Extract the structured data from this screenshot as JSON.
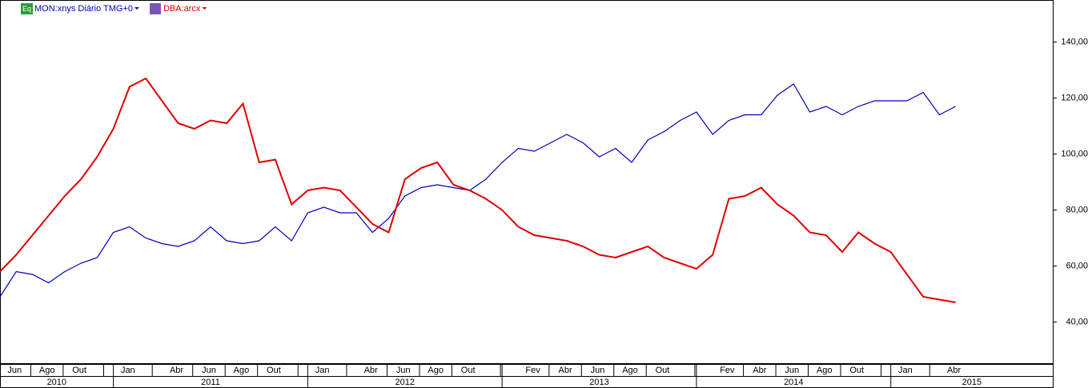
{
  "chart_data": {
    "type": "line",
    "legend": "top-left",
    "x": [
      "2010-06",
      "2010-07",
      "2010-08",
      "2010-09",
      "2010-10",
      "2010-11",
      "2010-12",
      "2011-01",
      "2011-02",
      "2011-03",
      "2011-04",
      "2011-05",
      "2011-06",
      "2011-07",
      "2011-08",
      "2011-09",
      "2011-10",
      "2011-11",
      "2011-12",
      "2012-01",
      "2012-02",
      "2012-03",
      "2012-04",
      "2012-05",
      "2012-06",
      "2012-07",
      "2012-08",
      "2012-09",
      "2012-10",
      "2012-11",
      "2012-12",
      "2013-01",
      "2013-02",
      "2013-03",
      "2013-04",
      "2013-05",
      "2013-06",
      "2013-07",
      "2013-08",
      "2013-09",
      "2013-10",
      "2013-11",
      "2013-12",
      "2014-01",
      "2014-02",
      "2014-03",
      "2014-04",
      "2014-05",
      "2014-06",
      "2014-07",
      "2014-08",
      "2014-09",
      "2014-10",
      "2014-11",
      "2014-12",
      "2015-01",
      "2015-02",
      "2015-03",
      "2015-04",
      "2015-05"
    ],
    "series": [
      {
        "name": "MON:xnys Diário TMG+0",
        "badge": "Eq",
        "color": "#0000c0",
        "values": [
          49,
          58,
          57,
          54,
          58,
          61,
          63,
          72,
          74,
          70,
          68,
          67,
          69,
          74,
          69,
          68,
          69,
          74,
          69,
          79,
          81,
          79,
          79,
          72,
          77,
          85,
          88,
          89,
          88,
          87,
          91,
          97,
          102,
          101,
          104,
          107,
          104,
          99,
          102,
          97,
          105,
          108,
          112,
          115,
          107,
          112,
          114,
          114,
          121,
          125,
          115,
          117,
          114,
          117,
          119,
          119,
          119,
          122,
          114,
          117
        ]
      },
      {
        "name": "DBA:arcx",
        "color": "#e00000",
        "values": [
          58,
          64,
          71,
          78,
          85,
          91,
          99,
          109,
          124,
          127,
          119,
          111,
          109,
          112,
          111,
          118,
          97,
          98,
          82,
          87,
          88,
          87,
          81,
          75,
          72,
          91,
          95,
          97,
          89,
          87,
          84,
          80,
          74,
          71,
          70,
          69,
          67,
          64,
          63,
          65,
          67,
          63,
          61,
          59,
          64,
          84,
          85,
          88,
          82,
          78,
          72,
          71,
          65,
          72,
          68,
          65,
          57,
          49,
          48,
          47
        ]
      }
    ],
    "xlim": [
      "2010-06",
      "2015-11"
    ],
    "month_ticks": [
      {
        "value": "2010-06",
        "label": "Jun"
      },
      {
        "value": "2010-08",
        "label": "Ago"
      },
      {
        "value": "2010-10",
        "label": "Out"
      },
      {
        "value": "2011-01",
        "label": "Jan"
      },
      {
        "value": "2011-04",
        "label": "Abr"
      },
      {
        "value": "2011-06",
        "label": "Jun"
      },
      {
        "value": "2011-08",
        "label": "Ago"
      },
      {
        "value": "2011-10",
        "label": "Out"
      },
      {
        "value": "2012-01",
        "label": "Jan"
      },
      {
        "value": "2012-04",
        "label": "Abr"
      },
      {
        "value": "2012-06",
        "label": "Jun"
      },
      {
        "value": "2012-08",
        "label": "Ago"
      },
      {
        "value": "2012-10",
        "label": "Out"
      },
      {
        "value": "2013-02",
        "label": "Fev"
      },
      {
        "value": "2013-04",
        "label": "Abr"
      },
      {
        "value": "2013-06",
        "label": "Jun"
      },
      {
        "value": "2013-08",
        "label": "Ago"
      },
      {
        "value": "2013-10",
        "label": "Out"
      },
      {
        "value": "2014-02",
        "label": "Fev"
      },
      {
        "value": "2014-04",
        "label": "Abr"
      },
      {
        "value": "2014-06",
        "label": "Jun"
      },
      {
        "value": "2014-08",
        "label": "Ago"
      },
      {
        "value": "2014-10",
        "label": "Out"
      },
      {
        "value": "2015-01",
        "label": "Jan"
      },
      {
        "value": "2015-04",
        "label": "Abr"
      }
    ],
    "year_ticks": [
      {
        "value": "2010",
        "label": "2010"
      },
      {
        "value": "2011",
        "label": "2011"
      },
      {
        "value": "2012",
        "label": "2012"
      },
      {
        "value": "2013",
        "label": "2013"
      },
      {
        "value": "2014",
        "label": "2014"
      },
      {
        "value": "2015",
        "label": "2015"
      }
    ],
    "ylim": [
      25,
      155
    ],
    "yticks": [
      {
        "value": 40,
        "label": "40,00"
      },
      {
        "value": 60,
        "label": "60,00"
      },
      {
        "value": 80,
        "label": "80,00"
      },
      {
        "value": 100,
        "label": "100,00"
      },
      {
        "value": 120,
        "label": "120,00"
      },
      {
        "value": 140,
        "label": "140,00"
      }
    ]
  }
}
